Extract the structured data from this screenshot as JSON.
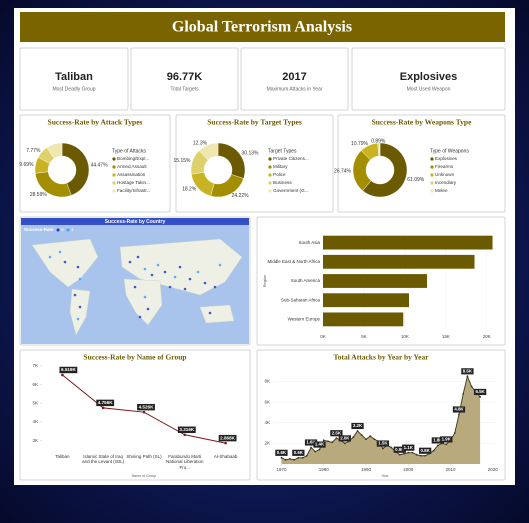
{
  "title": "Global Terrorism Analysis",
  "kpis": [
    {
      "value": "Taliban",
      "label": "Most Deadly Group"
    },
    {
      "value": "96.77K",
      "label": "Total Targets"
    },
    {
      "value": "2017",
      "label": "Maximum Attacks in Year"
    },
    {
      "value": "Explosives",
      "label": "Most Used Weapon"
    }
  ],
  "chart_data": [
    {
      "type": "donut",
      "title": "Success-Rate by Attack Types",
      "legend_title": "Type of Attacks",
      "categories": [
        "Bombing/Expl...",
        "Armed Assault",
        "Assassination",
        "Hostage Takin...",
        "Facility/Infrastr..."
      ],
      "values": [
        44.47,
        28.59,
        9.69,
        7.77,
        9.48
      ],
      "value_labels": [
        "44.47%",
        "28.59%",
        "9.69%",
        "7.77%",
        null
      ],
      "colors": [
        "#6b5a00",
        "#a38d00",
        "#c9b322",
        "#ded06a",
        "#efe7b0"
      ]
    },
    {
      "type": "donut",
      "title": "Success-Rate by Target Types",
      "legend_title": "Target Types",
      "categories": [
        "Private Citizens...",
        "Military",
        "Police",
        "Business",
        "Government (G..."
      ],
      "values": [
        30.13,
        24.22,
        18.2,
        15.15,
        12.3
      ],
      "value_labels": [
        "30.13%",
        "24.22%",
        "18.2%",
        "15.15%",
        "12.3%"
      ],
      "colors": [
        "#6b5a00",
        "#a38d00",
        "#c9b322",
        "#ded06a",
        "#efe7b0"
      ]
    },
    {
      "type": "donut",
      "title": "Success-Rate by Weapons Type",
      "legend_title": "Type of Weapons",
      "categories": [
        "Explosives",
        "Firearms",
        "Unknown",
        "Incendiary",
        "Melee"
      ],
      "values": [
        61.09,
        26.74,
        10.79,
        0.89,
        0.49
      ],
      "value_labels": [
        "61.09%",
        "26.74%",
        "10.79%",
        "0.89%",
        null
      ],
      "colors": [
        "#6b5a00",
        "#a38d00",
        "#c9b322",
        "#ded06a",
        "#efe7b0"
      ]
    },
    {
      "type": "map",
      "title": "Success-Rate by Country",
      "legend_title": "Success-Rate",
      "legend_labels": [
        "0",
        "1"
      ],
      "colors": [
        "#1f3fbf",
        "#3fa0ff"
      ]
    },
    {
      "type": "hbar",
      "y_label": "Region",
      "categories": [
        "South Asia",
        "Middle East & North Africa",
        "South America",
        "Sub-Saharan Africa",
        "Western Europe"
      ],
      "values": [
        20700,
        18500,
        12700,
        10500,
        9800
      ],
      "color": "#6b5a00",
      "xlim": [
        0,
        21000
      ],
      "xticks": [
        {
          "value": 0,
          "label": "0K"
        },
        {
          "value": 5000,
          "label": "5K"
        },
        {
          "value": 10000,
          "label": "10K"
        },
        {
          "value": 15000,
          "label": "15K"
        },
        {
          "value": 20000,
          "label": "20K"
        }
      ]
    },
    {
      "type": "line",
      "title": "Success-Rate by Name of Group",
      "x_label": "Name of Group",
      "categories": [
        "Taliban",
        "Islamic State of Iraq and the Levant (ISIL)",
        "Shining Path (SL)",
        "Farabundo Marti National Liberation Fro...",
        "Al-Shabaab"
      ],
      "values": [
        6519,
        4756,
        4526,
        3316,
        2868
      ],
      "value_labels": [
        "6.519K",
        "4.756K",
        "4.526K",
        "3.316K",
        "2.868K"
      ],
      "color": "#7a1a1a",
      "ylim": [
        2500,
        7000
      ],
      "yticks": [
        {
          "value": 3000,
          "label": "3K"
        },
        {
          "value": 4000,
          "label": "4K"
        },
        {
          "value": 5000,
          "label": "5K"
        },
        {
          "value": 6000,
          "label": "6K"
        },
        {
          "value": 7000,
          "label": "7K"
        }
      ]
    },
    {
      "type": "area",
      "title": "Total Attacks by Year by Year",
      "x_label": "Year",
      "x": [
        1970,
        1971,
        1972,
        1973,
        1974,
        1975,
        1976,
        1977,
        1978,
        1979,
        1980,
        1981,
        1982,
        1983,
        1984,
        1985,
        1986,
        1987,
        1988,
        1989,
        1990,
        1991,
        1992,
        1993,
        1994,
        1995,
        1996,
        1997,
        1998,
        1999,
        2000,
        2001,
        2002,
        2003,
        2004,
        2005,
        2006,
        2007,
        2008,
        2009,
        2010,
        2011,
        2012,
        2013,
        2014,
        2015,
        2016,
        2017
      ],
      "values": [
        600,
        400,
        500,
        400,
        600,
        600,
        800,
        1600,
        1200,
        1400,
        2300,
        2200,
        2100,
        2500,
        2300,
        2000,
        2200,
        2600,
        3200,
        2800,
        2400,
        2700,
        2400,
        2200,
        1500,
        1800,
        1600,
        1200,
        900,
        1000,
        1100,
        1100,
        900,
        800,
        800,
        1000,
        1300,
        1800,
        2000,
        1900,
        2300,
        3000,
        4800,
        6800,
        8500,
        7500,
        7000,
        6500
      ],
      "value_labels": [
        "0.6K",
        null,
        null,
        null,
        "0.6K",
        null,
        null,
        "1.6K",
        null,
        "1.4K",
        null,
        null,
        null,
        "2.5K",
        null,
        "2.0K",
        null,
        null,
        "3.2K",
        null,
        null,
        null,
        null,
        null,
        "1.5K",
        null,
        null,
        null,
        "0.9K",
        null,
        "1.1K",
        null,
        null,
        null,
        "0.8K",
        null,
        null,
        "1.8K",
        null,
        "1.9K",
        null,
        null,
        "4.8K",
        null,
        "8.5K",
        null,
        null,
        "6.5K"
      ],
      "color": "#3d3420",
      "fill": "#b8aa7c",
      "xlim": [
        1968,
        2021
      ],
      "xticks": [
        1970,
        1980,
        1990,
        2000,
        2010,
        2020
      ],
      "ylim": [
        0,
        9500
      ],
      "yticks": [
        {
          "value": 2000,
          "label": "2K"
        },
        {
          "value": 4000,
          "label": "4K"
        },
        {
          "value": 6000,
          "label": "6K"
        },
        {
          "value": 8000,
          "label": "8K"
        }
      ]
    }
  ]
}
